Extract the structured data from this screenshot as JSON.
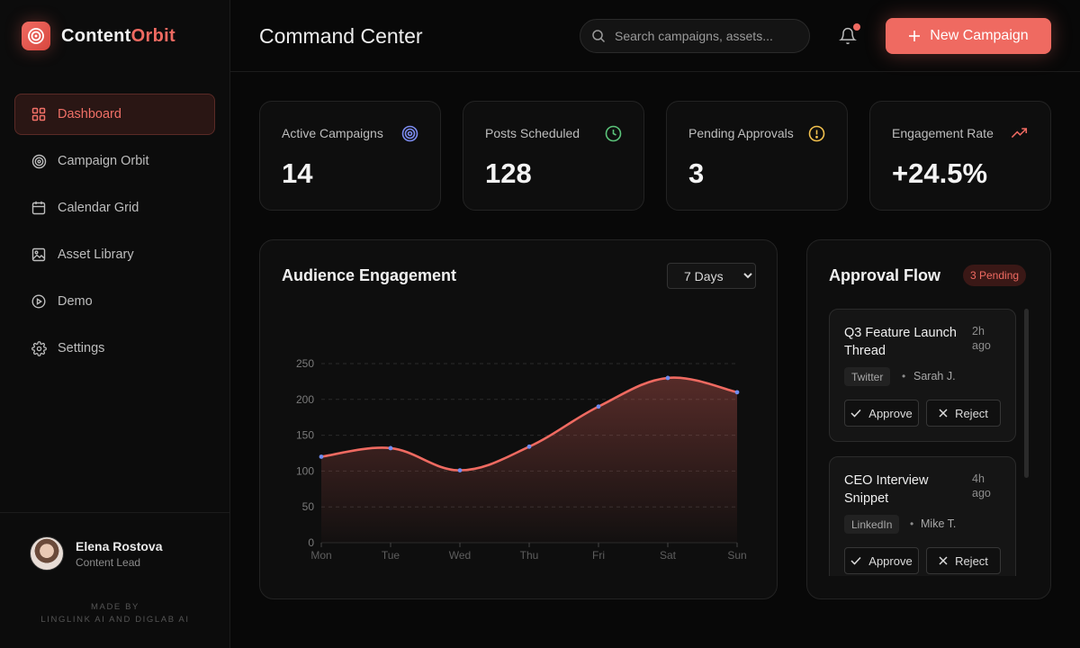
{
  "brand": {
    "name_part1": "Content",
    "name_part2": "Orbit",
    "accent": "#ef6a61"
  },
  "sidebar": {
    "items": [
      {
        "label": "Dashboard",
        "icon": "grid-icon",
        "active": true
      },
      {
        "label": "Campaign Orbit",
        "icon": "target-icon",
        "active": false
      },
      {
        "label": "Calendar Grid",
        "icon": "calendar-icon",
        "active": false
      },
      {
        "label": "Asset Library",
        "icon": "image-icon",
        "active": false
      },
      {
        "label": "Demo",
        "icon": "play-circle-icon",
        "active": false
      },
      {
        "label": "Settings",
        "icon": "gear-icon",
        "active": false
      }
    ],
    "user": {
      "name": "Elena Rostova",
      "role": "Content Lead"
    },
    "made_by_line1": "MADE BY",
    "made_by_line2": "LINGLINK AI AND DIGLAB AI"
  },
  "header": {
    "title": "Command Center",
    "search_placeholder": "Search campaigns, assets...",
    "new_button_label": "New Campaign"
  },
  "stats": [
    {
      "label": "Active Campaigns",
      "value": "14",
      "icon": "target-icon",
      "color": "#7c8cf0"
    },
    {
      "label": "Posts Scheduled",
      "value": "128",
      "icon": "clock-icon",
      "color": "#5bc47a"
    },
    {
      "label": "Pending Approvals",
      "value": "3",
      "icon": "alert-circle-icon",
      "color": "#f2c14e"
    },
    {
      "label": "Engagement Rate",
      "value": "+24.5%",
      "icon": "trending-up-icon",
      "color": "#ef6a61"
    }
  ],
  "engagement": {
    "title": "Audience Engagement",
    "range_selected": "7 Days"
  },
  "chart_data": {
    "type": "area",
    "categories": [
      "Mon",
      "Tue",
      "Wed",
      "Thu",
      "Fri",
      "Sat",
      "Sun"
    ],
    "values": [
      120,
      132,
      101,
      134,
      190,
      230,
      210
    ],
    "yticks": [
      0,
      50,
      100,
      150,
      200,
      250
    ],
    "ylim": [
      0,
      250
    ],
    "line_color": "#ef6a61",
    "point_color": "#6f8cf0",
    "grid": true
  },
  "approvals": {
    "title": "Approval Flow",
    "badge": "3 Pending",
    "approve_label": "Approve",
    "reject_label": "Reject",
    "items": [
      {
        "title": "Q3 Feature Launch Thread",
        "time": "2h ago",
        "platform": "Twitter",
        "author": "Sarah J."
      },
      {
        "title": "CEO Interview Snippet",
        "time": "4h ago",
        "platform": "LinkedIn",
        "author": "Mike T."
      }
    ]
  }
}
